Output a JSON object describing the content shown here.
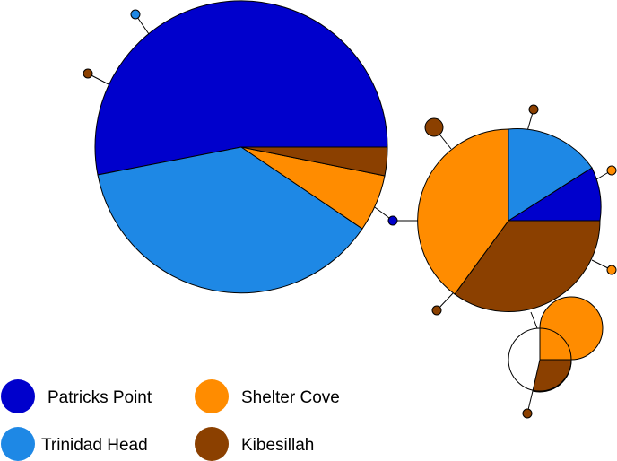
{
  "legend": {
    "items": [
      {
        "label": "Patricks Point",
        "color": "#0000CC"
      },
      {
        "label": "Trinidad Head",
        "color": "#1E88E5"
      },
      {
        "label": "Shelter Cove",
        "color": "#FF8C00"
      },
      {
        "label": "Kibesillah",
        "color": "#8B4000"
      }
    ]
  },
  "haplotypes": [
    {
      "id": "large",
      "composition": [
        {
          "population": "Patricks Point",
          "fraction": 0.516
        },
        {
          "population": "Trinidad Head",
          "fraction": 0.379
        },
        {
          "population": "Shelter Cove",
          "fraction": 0.075
        },
        {
          "population": "Kibesillah",
          "fraction": 0.03
        }
      ]
    },
    {
      "id": "medium",
      "composition": [
        {
          "population": "Patricks Point",
          "fraction": 0.097
        },
        {
          "population": "Kibesillah",
          "fraction": 0.322
        },
        {
          "population": "Shelter Cove",
          "fraction": 0.436
        },
        {
          "population": "Trinidad Head",
          "fraction": 0.145
        }
      ]
    },
    {
      "id": "small",
      "composition": [
        {
          "population": "Kibesillah",
          "fraction": 0.25
        },
        {
          "population": "Shelter Cove",
          "fraction": 0.75
        }
      ]
    }
  ]
}
